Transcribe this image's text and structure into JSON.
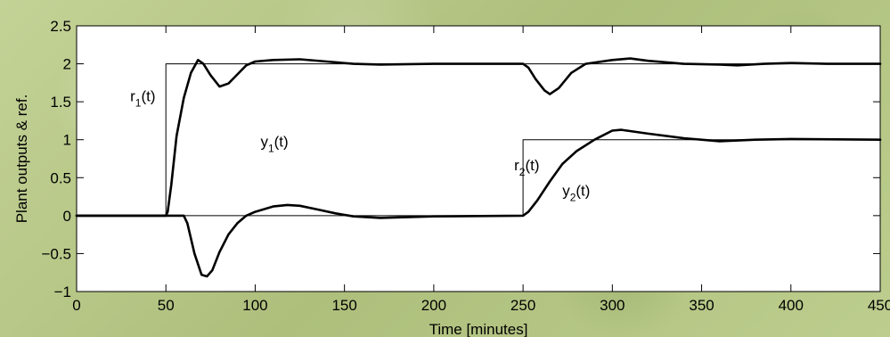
{
  "chart_data": {
    "type": "line",
    "xlabel": "Time [minutes]",
    "ylabel": "Plant outputs & ref.",
    "xlim": [
      0,
      450
    ],
    "ylim": [
      -1,
      2.5
    ],
    "x_ticks": [
      0,
      50,
      100,
      150,
      200,
      250,
      300,
      350,
      400,
      450
    ],
    "x_tick_labels": [
      "0",
      "50",
      "100",
      "150",
      "200",
      "250",
      "300",
      "350",
      "400",
      "450"
    ],
    "y_ticks": [
      -1,
      -0.5,
      0,
      0.5,
      1,
      1.5,
      2,
      2.5
    ],
    "y_tick_labels": [
      "−1",
      "−0.5",
      "0",
      "0.5",
      "1",
      "1.5",
      "2",
      "2.5"
    ],
    "grid": false,
    "series": [
      {
        "style": "thin",
        "x": [
          0,
          50,
          50,
          450
        ],
        "y": [
          0,
          0,
          2,
          2
        ]
      },
      {
        "style": "thin",
        "x": [
          0,
          250,
          250,
          450
        ],
        "y": [
          0,
          0,
          1,
          1
        ]
      },
      {
        "style": "thick",
        "x": [
          0,
          50,
          51,
          53,
          56,
          60,
          64,
          68,
          71,
          75,
          80,
          85,
          90,
          95,
          100,
          110,
          125,
          140,
          155,
          170,
          200,
          250,
          253,
          257,
          262,
          265,
          270,
          277,
          285,
          300,
          310,
          320,
          340,
          360,
          370,
          385,
          400,
          420,
          450
        ],
        "y": [
          0,
          0,
          0.05,
          0.4,
          1.05,
          1.55,
          1.88,
          2.05,
          2.0,
          1.85,
          1.7,
          1.74,
          1.86,
          1.98,
          2.03,
          2.05,
          2.06,
          2.03,
          2.0,
          1.99,
          2.0,
          2.0,
          1.95,
          1.8,
          1.65,
          1.6,
          1.68,
          1.88,
          2.0,
          2.05,
          2.07,
          2.04,
          2.0,
          1.99,
          1.98,
          2.0,
          2.01,
          2.0,
          2.0
        ]
      },
      {
        "style": "thick",
        "x": [
          0,
          60,
          62,
          66,
          70,
          73,
          76,
          80,
          85,
          90,
          95,
          100,
          110,
          118,
          125,
          135,
          145,
          155,
          170,
          200,
          250,
          253,
          258,
          265,
          272,
          280,
          290,
          300,
          305,
          320,
          340,
          360,
          380,
          400,
          450
        ],
        "y": [
          0,
          0,
          -0.1,
          -0.5,
          -0.78,
          -0.8,
          -0.72,
          -0.48,
          -0.25,
          -0.1,
          0.0,
          0.05,
          0.12,
          0.14,
          0.13,
          0.08,
          0.03,
          -0.01,
          -0.03,
          -0.01,
          0.0,
          0.05,
          0.2,
          0.45,
          0.68,
          0.85,
          1.0,
          1.12,
          1.13,
          1.08,
          1.02,
          0.98,
          1.0,
          1.01,
          1.0
        ]
      }
    ],
    "annotations": [
      {
        "main": "r",
        "sub": "1",
        "tail": "(t)",
        "x": 30,
        "y": 1.51
      },
      {
        "main": "y",
        "sub": "1",
        "tail": "(t)",
        "x": 103,
        "y": 0.91
      },
      {
        "main": "r",
        "sub": "2",
        "tail": "(t)",
        "x": 245,
        "y": 0.6
      },
      {
        "main": "y",
        "sub": "2",
        "tail": "(t)",
        "x": 272,
        "y": 0.26
      }
    ]
  }
}
